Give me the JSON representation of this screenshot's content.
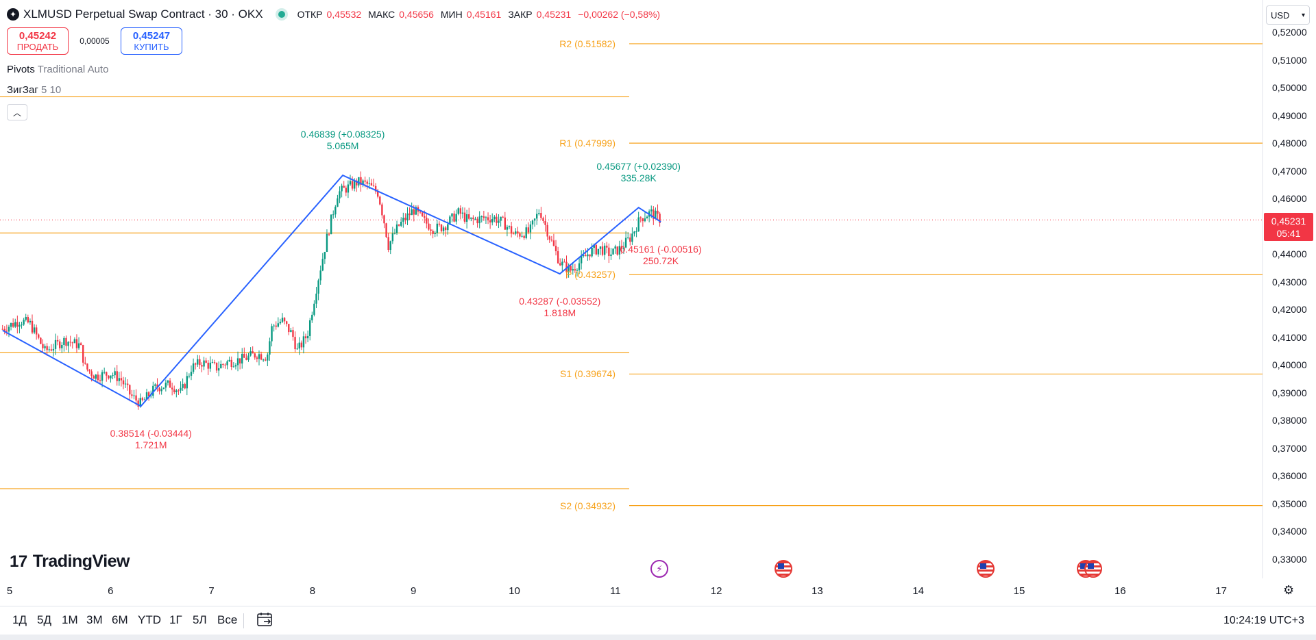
{
  "header": {
    "symbol_title": "XLMUSD Perpetual Swap Contract · 30 · OKX",
    "ohlc": [
      {
        "key": "ОТКР",
        "value": "0,45532"
      },
      {
        "key": "МАКС",
        "value": "0,45656"
      },
      {
        "key": "МИН",
        "value": "0,45161"
      },
      {
        "key": "ЗАКР",
        "value": "0,45231"
      }
    ],
    "change": "−0,00262 (−0,58%)"
  },
  "trade": {
    "sell_price": "0,45242",
    "sell_label": "ПРОДАТЬ",
    "spread": "0,00005",
    "buy_price": "0,45247",
    "buy_label": "КУПИТЬ"
  },
  "indicators": [
    {
      "name": "Pivots",
      "params": "Traditional Auto"
    },
    {
      "name": "ЗигЗаг",
      "params": "5 10"
    }
  ],
  "currency": "USD",
  "price_tag": {
    "price": "0,45231",
    "countdown": "05:41"
  },
  "colors": {
    "up": "#089981",
    "down": "#f23645",
    "pivot": "#f7a21b",
    "zigzag": "#2962ff",
    "text": "#131722"
  },
  "chart_data": {
    "type": "candlestick",
    "y_ticks": [
      "0,52000",
      "0,51000",
      "0,50000",
      "0,49000",
      "0,48000",
      "0,47000",
      "0,46000",
      "0,45000",
      "0,44000",
      "0,43000",
      "0,42000",
      "0,41000",
      "0,40000",
      "0,39000",
      "0,38000",
      "0,37000",
      "0,36000",
      "0,35000",
      "0,34000",
      "0,33000"
    ],
    "ylim": [
      0.324,
      0.522
    ],
    "x_ticks": [
      "5",
      "6",
      "7",
      "8",
      "9",
      "10",
      "11",
      "12",
      "13",
      "14",
      "15",
      "16",
      "17"
    ],
    "current_price": 0.45231,
    "pivot_levels_current": [
      {
        "label": "R2",
        "text": "R2 (0.51582)",
        "value": 0.51582
      },
      {
        "label": "R1",
        "text": "R1 (0.47999)",
        "value": 0.47999
      },
      {
        "label": "P",
        "text": "P (0.43257)",
        "value": 0.43257
      },
      {
        "label": "S1",
        "text": "S1 (0.39674)",
        "value": 0.39674
      },
      {
        "label": "S2",
        "text": "S2 (0.34932)",
        "value": 0.34932
      }
    ],
    "pivot_levels_previous": [
      0.4967,
      0.4476,
      0.4045,
      0.3554
    ],
    "zigzag": [
      {
        "day": 4.93,
        "price": 0.4125
      },
      {
        "day": 6.3,
        "price": 0.38514
      },
      {
        "day": 8.3,
        "price": 0.46839
      },
      {
        "day": 10.45,
        "price": 0.43287
      },
      {
        "day": 11.23,
        "price": 0.45677
      },
      {
        "day": 11.45,
        "price": 0.45161
      }
    ],
    "zigzag_labels": [
      {
        "price_text": "0.38514 (-0.03444)",
        "volume": "1.721M",
        "dir": "down",
        "day": 6.4,
        "value": 0.38514
      },
      {
        "price_text": "0.46839 (+0.08325)",
        "volume": "5.065M",
        "dir": "up",
        "day": 8.3,
        "value": 0.46839
      },
      {
        "price_text": "0.43287 (-0.03552)",
        "volume": "1.818M",
        "dir": "down",
        "day": 10.45,
        "value": 0.43287
      },
      {
        "price_text": "0.45677 (+0.02390)",
        "volume": "335.28K",
        "dir": "up",
        "day": 11.23,
        "value": 0.45677
      },
      {
        "price_text": "0.45161 (-0.00516)",
        "volume": "250.72K",
        "dir": "down",
        "day": 11.45,
        "value": 0.45161
      }
    ],
    "candle_path": [
      [
        4.93,
        0.413
      ],
      [
        5.1,
        0.416
      ],
      [
        5.2,
        0.415
      ],
      [
        5.35,
        0.405
      ],
      [
        5.55,
        0.409
      ],
      [
        5.7,
        0.407
      ],
      [
        5.75,
        0.399
      ],
      [
        5.85,
        0.396
      ],
      [
        6.0,
        0.397
      ],
      [
        6.1,
        0.395
      ],
      [
        6.2,
        0.389
      ],
      [
        6.3,
        0.386
      ],
      [
        6.45,
        0.392
      ],
      [
        6.6,
        0.393
      ],
      [
        6.7,
        0.39
      ],
      [
        6.8,
        0.399
      ],
      [
        6.9,
        0.401
      ],
      [
        7.05,
        0.399
      ],
      [
        7.15,
        0.401
      ],
      [
        7.3,
        0.402
      ],
      [
        7.45,
        0.404
      ],
      [
        7.55,
        0.403
      ],
      [
        7.6,
        0.414
      ],
      [
        7.7,
        0.416
      ],
      [
        7.8,
        0.411
      ],
      [
        7.85,
        0.405
      ],
      [
        7.95,
        0.411
      ],
      [
        8.05,
        0.43
      ],
      [
        8.15,
        0.447
      ],
      [
        8.25,
        0.462
      ],
      [
        8.35,
        0.464
      ],
      [
        8.45,
        0.466
      ],
      [
        8.55,
        0.465
      ],
      [
        8.65,
        0.462
      ],
      [
        8.72,
        0.45
      ],
      [
        8.75,
        0.443
      ],
      [
        8.85,
        0.45
      ],
      [
        9.0,
        0.456
      ],
      [
        9.1,
        0.452
      ],
      [
        9.2,
        0.449
      ],
      [
        9.3,
        0.45
      ],
      [
        9.45,
        0.455
      ],
      [
        9.55,
        0.452
      ],
      [
        9.7,
        0.453
      ],
      [
        9.8,
        0.453
      ],
      [
        9.9,
        0.451
      ],
      [
        10.0,
        0.447
      ],
      [
        10.15,
        0.448
      ],
      [
        10.25,
        0.456
      ],
      [
        10.35,
        0.446
      ],
      [
        10.45,
        0.437
      ],
      [
        10.55,
        0.434
      ],
      [
        10.65,
        0.437
      ],
      [
        10.75,
        0.441
      ],
      [
        10.85,
        0.442
      ],
      [
        10.95,
        0.44
      ],
      [
        11.05,
        0.442
      ],
      [
        11.15,
        0.446
      ],
      [
        11.25,
        0.453
      ],
      [
        11.35,
        0.455
      ],
      [
        11.45,
        0.4523
      ]
    ]
  },
  "events": [
    "bolt",
    "flag",
    "flag",
    "flag",
    "flag"
  ],
  "bottom": {
    "ranges": [
      "1Д",
      "5Д",
      "1М",
      "3М",
      "6М",
      "YTD",
      "1Г",
      "5Л",
      "Все"
    ],
    "clock": "10:24:19 UTC+3"
  }
}
